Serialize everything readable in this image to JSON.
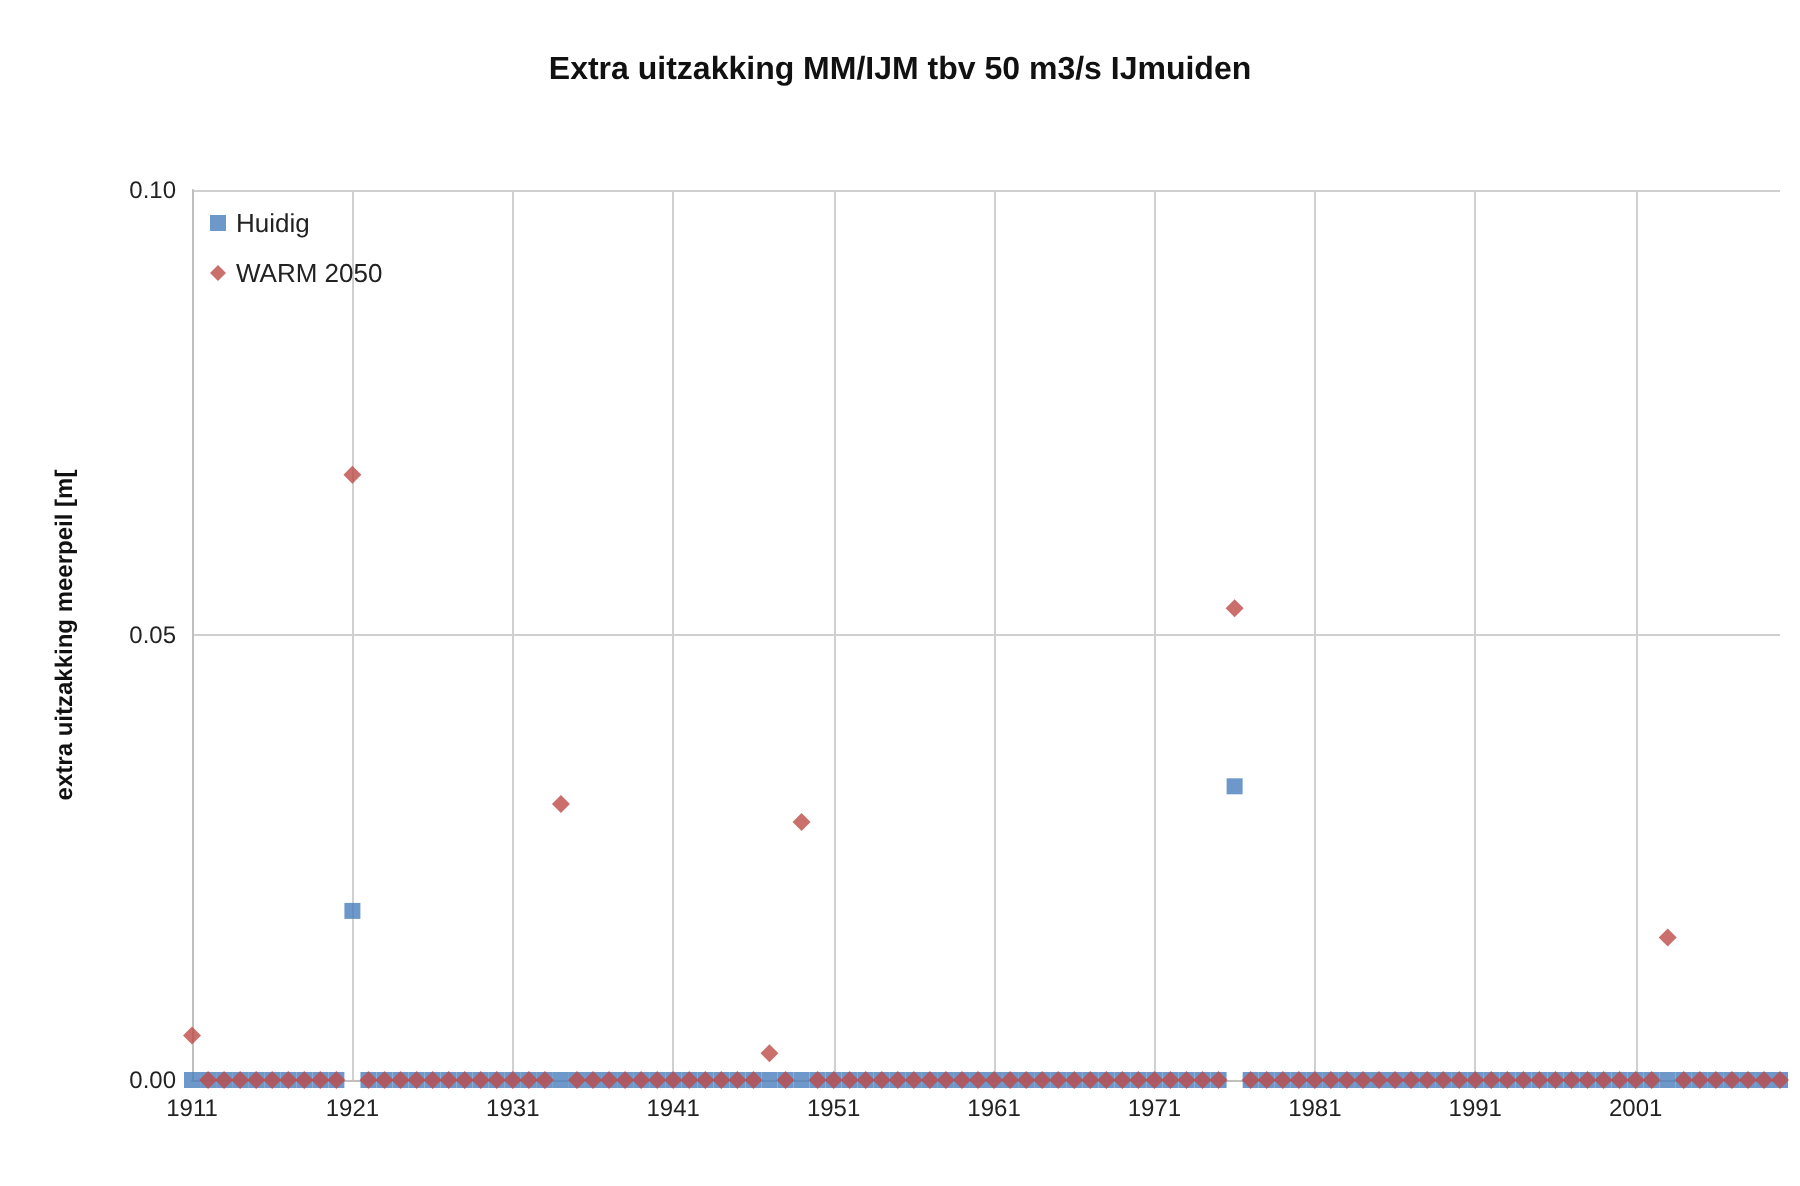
{
  "chart_data": {
    "type": "scatter",
    "title": "Extra uitzakking MM/IJM tbv 50 m3/s IJmuiden",
    "ylabel": "extra uitzakking meerpeil [m[",
    "x": [
      1911,
      1912,
      1913,
      1914,
      1915,
      1916,
      1917,
      1918,
      1919,
      1920,
      1921,
      1922,
      1923,
      1924,
      1925,
      1926,
      1927,
      1928,
      1929,
      1930,
      1931,
      1932,
      1933,
      1934,
      1935,
      1936,
      1937,
      1938,
      1939,
      1940,
      1941,
      1942,
      1943,
      1944,
      1945,
      1946,
      1947,
      1948,
      1949,
      1950,
      1951,
      1952,
      1953,
      1954,
      1955,
      1956,
      1957,
      1958,
      1959,
      1960,
      1961,
      1962,
      1963,
      1964,
      1965,
      1966,
      1967,
      1968,
      1969,
      1970,
      1971,
      1972,
      1973,
      1974,
      1975,
      1976,
      1977,
      1978,
      1979,
      1980,
      1981,
      1982,
      1983,
      1984,
      1985,
      1986,
      1987,
      1988,
      1989,
      1990,
      1991,
      1992,
      1993,
      1994,
      1995,
      1996,
      1997,
      1998,
      1999,
      2000,
      2001,
      2002,
      2003,
      2004,
      2005,
      2006,
      2007,
      2008,
      2009,
      2010
    ],
    "series": [
      {
        "name": "Huidig",
        "color": "#4a7ebb",
        "marker": "square",
        "values": [
          0,
          0,
          0,
          0,
          0,
          0,
          0,
          0,
          0,
          0,
          0.019,
          0,
          0,
          0,
          0,
          0,
          0,
          0,
          0,
          0,
          0,
          0,
          0,
          0,
          0,
          0,
          0,
          0,
          0,
          0,
          0,
          0,
          0,
          0,
          0,
          0,
          0,
          0,
          0,
          0,
          0,
          0,
          0,
          0,
          0,
          0,
          0,
          0,
          0,
          0,
          0,
          0,
          0,
          0,
          0,
          0,
          0,
          0,
          0,
          0,
          0,
          0,
          0,
          0,
          0,
          0.033,
          0,
          0,
          0,
          0,
          0,
          0,
          0,
          0,
          0,
          0,
          0,
          0,
          0,
          0,
          0,
          0,
          0,
          0,
          0,
          0,
          0,
          0,
          0,
          0,
          0,
          0,
          0,
          0,
          0,
          0,
          0,
          0,
          0,
          0
        ]
      },
      {
        "name": "WARM 2050",
        "color": "#be4b48",
        "marker": "diamond",
        "values": [
          0.005,
          0,
          0,
          0,
          0,
          0,
          0,
          0,
          0,
          0,
          0.068,
          0,
          0,
          0,
          0,
          0,
          0,
          0,
          0,
          0,
          0,
          0,
          0,
          0.031,
          0,
          0,
          0,
          0,
          0,
          0,
          0,
          0,
          0,
          0,
          0,
          0,
          0.003,
          0,
          0.029,
          0,
          0,
          0,
          0,
          0,
          0,
          0,
          0,
          0,
          0,
          0,
          0,
          0,
          0,
          0,
          0,
          0,
          0,
          0,
          0,
          0,
          0,
          0,
          0,
          0,
          0,
          0.053,
          0,
          0,
          0,
          0,
          0,
          0,
          0,
          0,
          0,
          0,
          0,
          0,
          0,
          0,
          0,
          0,
          0,
          0,
          0,
          0,
          0,
          0,
          0,
          0,
          0,
          0,
          0.016,
          0,
          0,
          0,
          0,
          0,
          0,
          0
        ]
      }
    ],
    "xlim": [
      1911,
      2010
    ],
    "xticks": [
      1911,
      1921,
      1931,
      1941,
      1951,
      1961,
      1971,
      1981,
      1991,
      2001
    ],
    "ylim": [
      0,
      0.1
    ],
    "yticks": [
      {
        "value": 0,
        "label": "0.00"
      },
      {
        "value": 0.05,
        "label": "0.05"
      },
      {
        "value": 0.1,
        "label": "0.10"
      }
    ],
    "grid": true,
    "legend": "top left"
  }
}
